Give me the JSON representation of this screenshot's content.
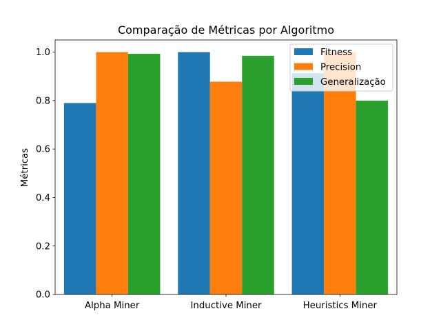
{
  "chart_data": {
    "type": "bar",
    "title": "Comparação de Métricas por Algoritmo",
    "xlabel": "",
    "ylabel": "Métricas",
    "categories": [
      "Alpha Miner",
      "Inductive Miner",
      "Heuristics Miner"
    ],
    "series": [
      {
        "name": "Fitness",
        "values": [
          0.79,
          1.0,
          0.913
        ],
        "color": "#1f77b4"
      },
      {
        "name": "Precision",
        "values": [
          1.0,
          0.878,
          1.0
        ],
        "color": "#ff7f0e"
      },
      {
        "name": "Generalização",
        "values": [
          0.993,
          0.985,
          0.8
        ],
        "color": "#2ca02c"
      }
    ],
    "ylim": [
      0,
      1.05
    ],
    "yticks": [
      "0.0",
      "0.2",
      "0.4",
      "0.6",
      "0.8",
      "1.0"
    ],
    "grid": false,
    "legend_position": "top-right"
  }
}
